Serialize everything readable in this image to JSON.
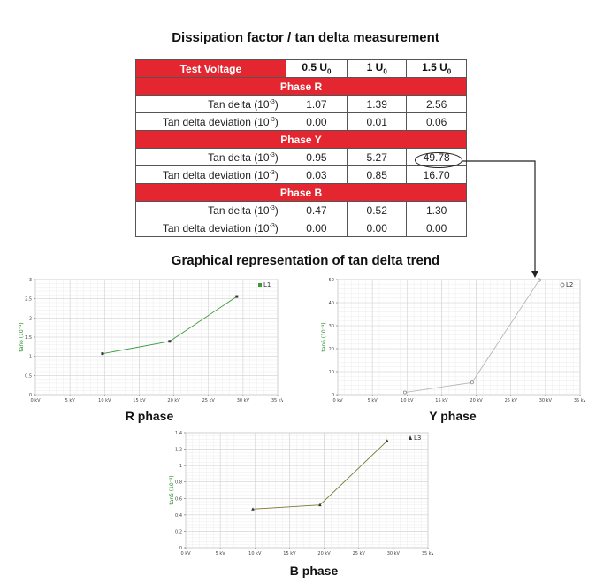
{
  "titles": {
    "main": "Dissipation factor / tan delta measurement",
    "graphs": "Graphical representation of tan delta trend"
  },
  "table": {
    "header_label": "Test Voltage",
    "voltages": [
      {
        "prefix": "0.5 U",
        "sub": "0"
      },
      {
        "prefix": "1 U",
        "sub": "0"
      },
      {
        "prefix": "1.5 U",
        "sub": "0"
      }
    ],
    "phases": [
      {
        "name": "Phase R",
        "rows": [
          {
            "label": "Tan delta (10",
            "exp": "-3",
            "suffix": ")",
            "values": [
              "1.07",
              "1.39",
              "2.56"
            ]
          },
          {
            "label": "Tan delta deviation (10",
            "exp": "-3",
            "suffix": ")",
            "values": [
              "0.00",
              "0.01",
              "0.06"
            ]
          }
        ]
      },
      {
        "name": "Phase Y",
        "rows": [
          {
            "label": "Tan delta (10",
            "exp": "-3",
            "suffix": ")",
            "values": [
              "0.95",
              "5.27",
              "49.78"
            ]
          },
          {
            "label": "Tan delta deviation (10",
            "exp": "-3",
            "suffix": ")",
            "values": [
              "0.03",
              "0.85",
              "16.70"
            ]
          }
        ]
      },
      {
        "name": "Phase B",
        "rows": [
          {
            "label": "Tan delta (10",
            "exp": "-3",
            "suffix": ")",
            "values": [
              "0.47",
              "0.52",
              "1.30"
            ]
          },
          {
            "label": "Tan delta deviation  (10",
            "exp": "-3",
            "suffix": ")",
            "values": [
              "0.00",
              "0.00",
              "0.00"
            ]
          }
        ]
      }
    ]
  },
  "chart_data": [
    {
      "type": "line",
      "caption": "R phase",
      "series": [
        {
          "name": "L1",
          "color": "#3a9a3a",
          "marker": "square",
          "x": [
            9.7,
            19.4,
            29.1
          ],
          "y": [
            1.07,
            1.39,
            2.56
          ]
        }
      ],
      "xlim": [
        0,
        35
      ],
      "ylim": [
        0,
        3
      ],
      "xticks": [
        0,
        5,
        10,
        15,
        20,
        25,
        30,
        35
      ],
      "xtick_labels": [
        "0 kV",
        "5 kV",
        "10 kV",
        "15 kV",
        "20 kV",
        "25 kV",
        "30 kV",
        "35 kV"
      ],
      "yticks": [
        0,
        0.5,
        1,
        1.5,
        2,
        2.5,
        3
      ],
      "ytick_labels": [
        "0",
        "0.5",
        "1",
        "1.5",
        "2",
        "2.5",
        "3"
      ],
      "ylabel": "tanδ (10⁻³)",
      "grid": true,
      "legend": "top-right"
    },
    {
      "type": "line",
      "caption": "Y phase",
      "series": [
        {
          "name": "L2",
          "color": "#b8b8b8",
          "marker": "circle",
          "x": [
            9.7,
            19.4,
            29.1
          ],
          "y": [
            0.95,
            5.27,
            49.78
          ]
        }
      ],
      "xlim": [
        0,
        35
      ],
      "ylim": [
        0,
        50
      ],
      "xticks": [
        0,
        5,
        10,
        15,
        20,
        25,
        30,
        35
      ],
      "xtick_labels": [
        "0 kV",
        "5 kV",
        "10 kV",
        "15 kV",
        "20 kV",
        "25 kV",
        "30 kV",
        "35 kV"
      ],
      "yticks": [
        0,
        10,
        20,
        30,
        40,
        50
      ],
      "ytick_labels": [
        "0",
        "10",
        "20",
        "30",
        "40",
        "50"
      ],
      "ylabel": "tanδ (10⁻³)",
      "grid": true,
      "legend": "top-right"
    },
    {
      "type": "line",
      "caption": "B phase",
      "series": [
        {
          "name": "L3",
          "color": "#7a7a30",
          "marker": "triangle",
          "x": [
            9.7,
            19.4,
            29.1
          ],
          "y": [
            0.47,
            0.52,
            1.3
          ]
        }
      ],
      "xlim": [
        0,
        35
      ],
      "ylim": [
        0,
        1.4
      ],
      "xticks": [
        0,
        5,
        10,
        15,
        20,
        25,
        30,
        35
      ],
      "xtick_labels": [
        "0 kV",
        "5 kV",
        "10 kV",
        "15 kV",
        "20 kV",
        "25 kV",
        "30 kV",
        "35 kV"
      ],
      "yticks": [
        0,
        0.2,
        0.4,
        0.6,
        0.8,
        1,
        1.2,
        1.4
      ],
      "ytick_labels": [
        "0",
        "0.2",
        "0.4",
        "0.6",
        "0.8",
        "1",
        "1.2",
        "1.4"
      ],
      "ylabel": "tanδ (10⁻³)",
      "grid": true,
      "legend": "top-right"
    }
  ]
}
